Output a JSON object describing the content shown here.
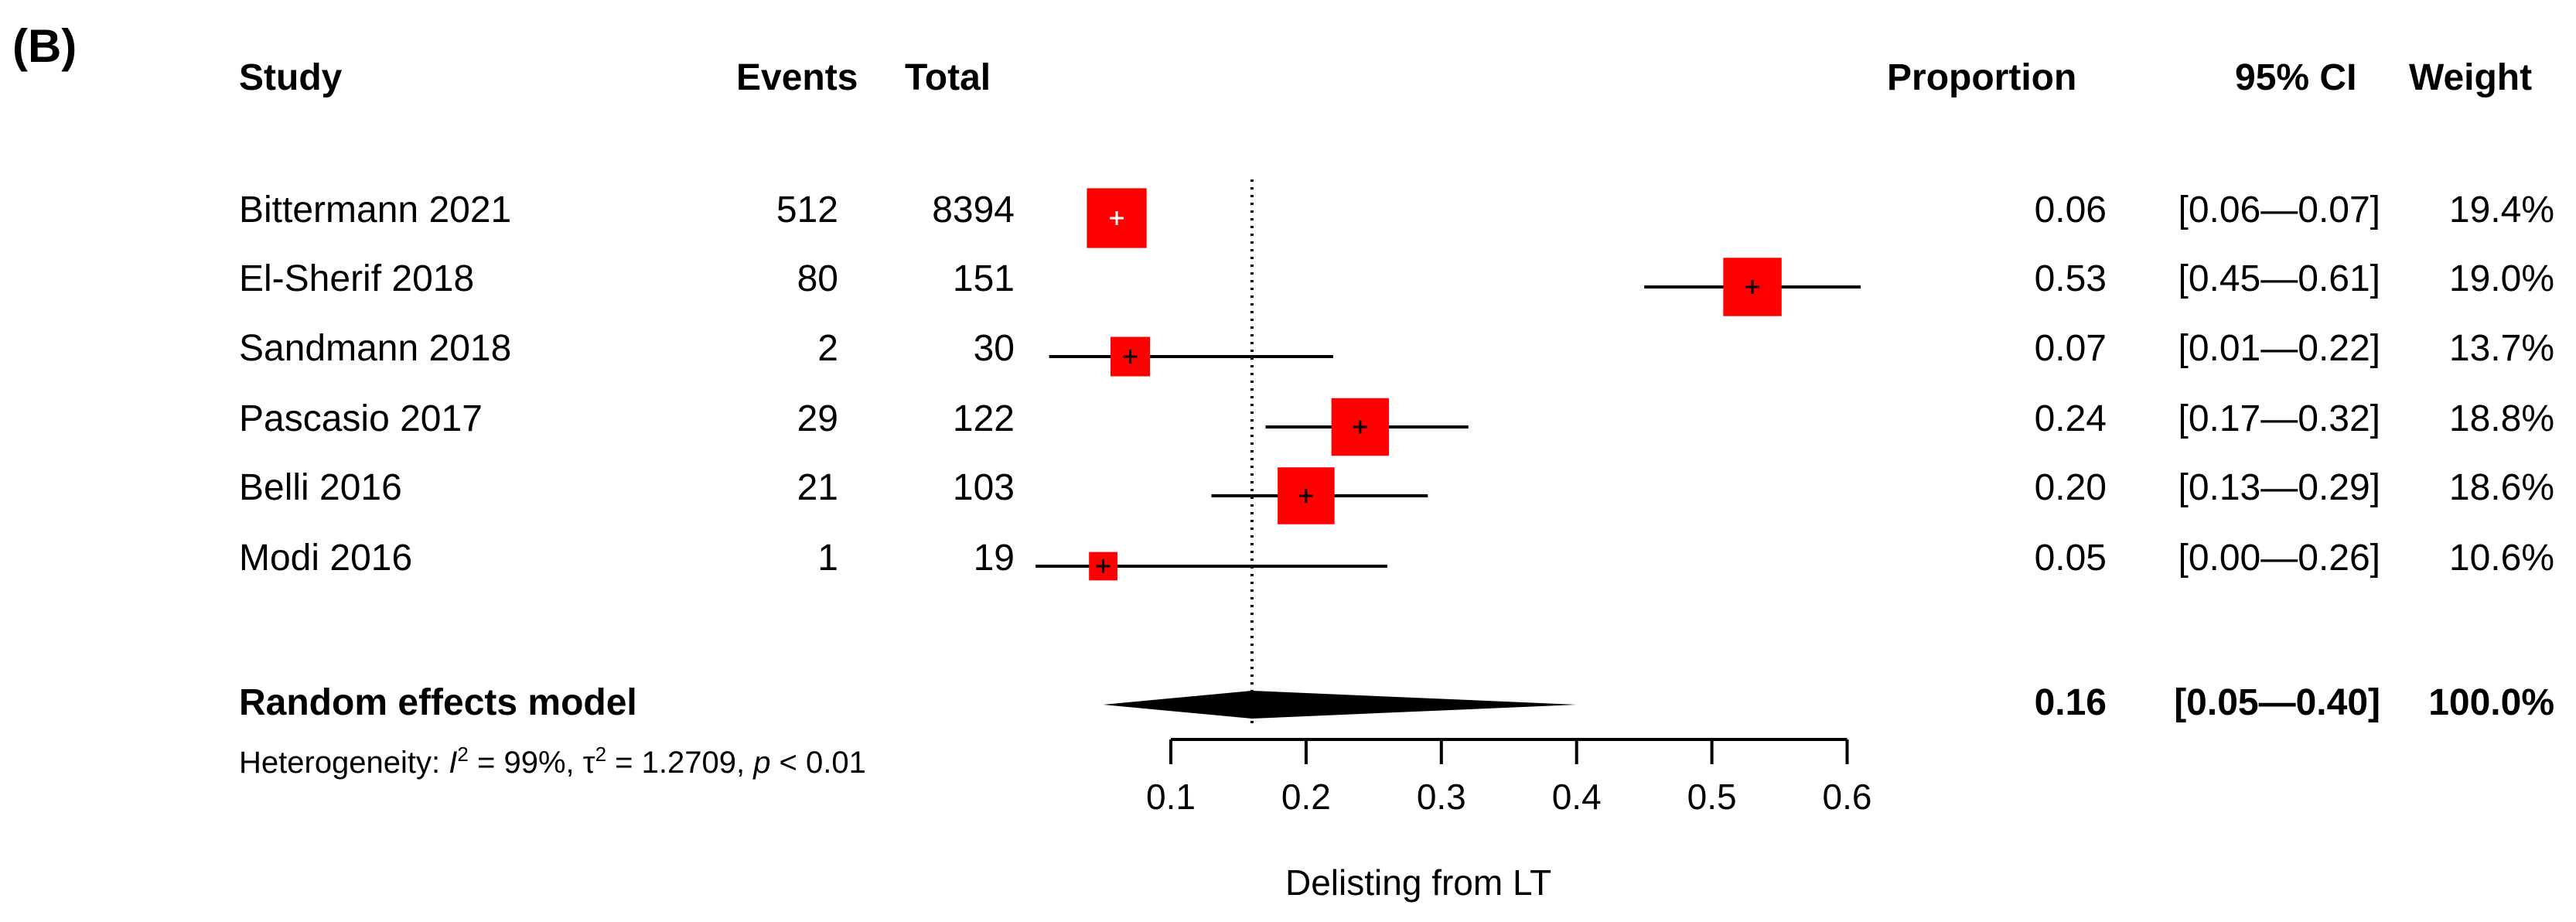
{
  "panel_label": "(B)",
  "headers": {
    "study": "Study",
    "events": "Events",
    "total": "Total",
    "proportion": "Proportion",
    "ci": "95% CI",
    "weight": "Weight"
  },
  "heterogeneity": {
    "prefix": "Heterogeneity: ",
    "i2_sym": "I",
    "i2_sup": "2",
    "i2_val": " = 99%, ",
    "tau_sym": "τ",
    "tau_sup": "2",
    "tau_val": " = 1.2709, ",
    "p_sym": "p",
    "p_val": " < 0.01"
  },
  "chart_data": {
    "type": "forest",
    "xlabel": "Delisting from LT",
    "xlim": [
      0.1,
      0.6
    ],
    "xticks": [
      0.1,
      0.2,
      0.3,
      0.4,
      0.5,
      0.6
    ],
    "tick_labels": [
      "0.1",
      "0.2",
      "0.3",
      "0.4",
      "0.5",
      "0.6"
    ],
    "reference_line": 0.16,
    "marker_color": "#ff0000",
    "studies": [
      {
        "study": "Bittermann 2021",
        "events": "512",
        "total": "8394",
        "proportion": 0.06,
        "ci_low": 0.06,
        "ci_high": 0.07,
        "prop_label": "0.06",
        "ci_label": "[0.06—0.07]",
        "weight_label": "19.4%",
        "weight": 19.4
      },
      {
        "study": "El-Sherif 2018",
        "events": "80",
        "total": "151",
        "proportion": 0.53,
        "ci_low": 0.45,
        "ci_high": 0.61,
        "prop_label": "0.53",
        "ci_label": "[0.45—0.61]",
        "weight_label": "19.0%",
        "weight": 19.0
      },
      {
        "study": "Sandmann 2018",
        "events": "2",
        "total": "30",
        "proportion": 0.07,
        "ci_low": 0.01,
        "ci_high": 0.22,
        "prop_label": "0.07",
        "ci_label": "[0.01—0.22]",
        "weight_label": "13.7%",
        "weight": 13.7
      },
      {
        "study": "Pascasio 2017",
        "events": "29",
        "total": "122",
        "proportion": 0.24,
        "ci_low": 0.17,
        "ci_high": 0.32,
        "prop_label": "0.24",
        "ci_label": "[0.17—0.32]",
        "weight_label": "18.8%",
        "weight": 18.8
      },
      {
        "study": "Belli 2016",
        "events": "21",
        "total": "103",
        "proportion": 0.2,
        "ci_low": 0.13,
        "ci_high": 0.29,
        "prop_label": "0.20",
        "ci_label": "[0.13—0.29]",
        "weight_label": "18.6%",
        "weight": 18.6
      },
      {
        "study": "Modi 2016",
        "events": "1",
        "total": "19",
        "proportion": 0.05,
        "ci_low": 0.0,
        "ci_high": 0.26,
        "prop_label": "0.05",
        "ci_label": "[0.00—0.26]",
        "weight_label": "10.6%",
        "weight": 10.6
      }
    ],
    "summary": {
      "label": "Random effects model",
      "proportion": 0.16,
      "ci_low": 0.05,
      "ci_high": 0.4,
      "prop_label": "0.16",
      "ci_label": "[0.05—0.40]",
      "weight_label": "100.0%"
    }
  }
}
